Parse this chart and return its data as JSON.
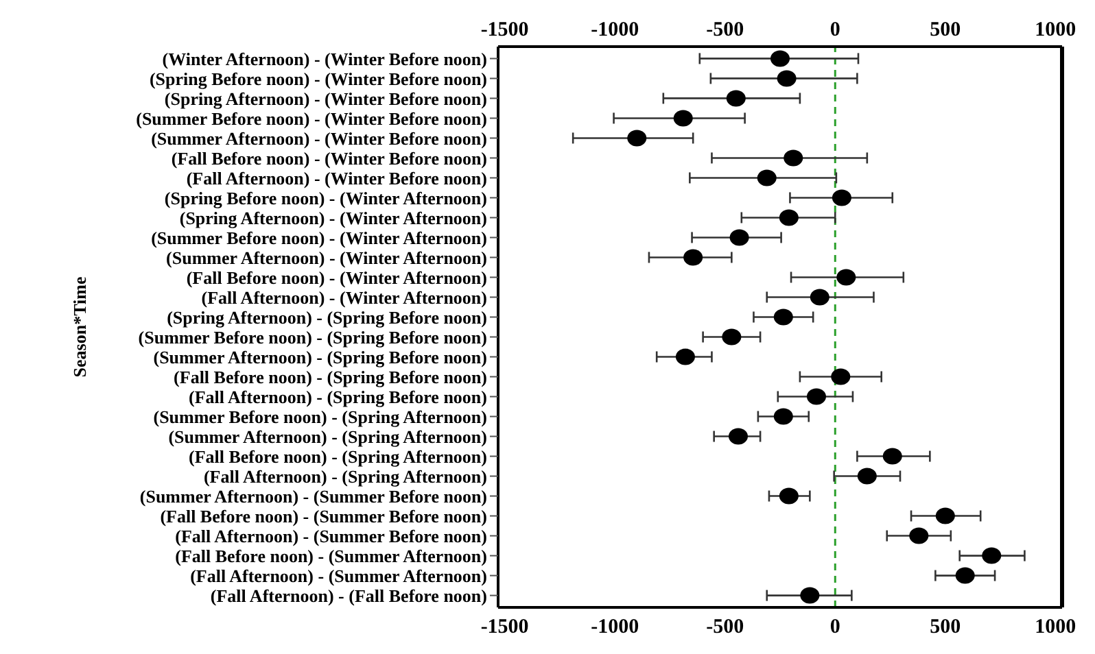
{
  "chart_data": {
    "type": "scatter",
    "orientation": "horizontal",
    "ylabel": "Season*Time",
    "categories": [
      "(Winter Afternoon) - (Winter Before noon)",
      "(Spring Before noon) - (Winter Before noon)",
      "(Spring Afternoon) - (Winter Before noon)",
      "(Summer Before noon) - (Winter Before noon)",
      "(Summer Afternoon) - (Winter Before noon)",
      "(Fall Before noon) - (Winter Before noon)",
      "(Fall Afternoon) - (Winter Before noon)",
      "(Spring Before noon) - (Winter Afternoon)",
      "(Spring Afternoon) - (Winter Afternoon)",
      "(Summer Before noon) - (Winter Afternoon)",
      "(Summer Afternoon) - (Winter Afternoon)",
      "(Fall Before noon) - (Winter Afternoon)",
      "(Fall Afternoon) - (Winter Afternoon)",
      "(Spring Afternoon) - (Spring Before noon)",
      "(Summer Before noon) - (Spring Before noon)",
      "(Summer Afternoon) - (Spring Before noon)",
      "(Fall Before noon) - (Spring Before noon)",
      "(Fall Afternoon) - (Spring Before noon)",
      "(Summer Before noon) - (Spring Afternoon)",
      "(Summer Afternoon) - (Spring Afternoon)",
      "(Fall Before noon) - (Spring Afternoon)",
      "(Fall Afternoon) - (Spring Afternoon)",
      "(Summer Afternoon) - (Summer Before noon)",
      "(Fall Before noon) - (Summer Before noon)",
      "(Fall Afternoon) - (Summer Before noon)",
      "(Fall Before noon) - (Summer Afternoon)",
      "(Fall Afternoon) - (Summer Afternoon)",
      "(Fall Afternoon) - (Fall Before noon)"
    ],
    "values": [
      -250,
      -220,
      -450,
      -690,
      -900,
      -190,
      -310,
      30,
      -210,
      -435,
      -645,
      50,
      -70,
      -235,
      -470,
      -680,
      25,
      -85,
      -235,
      -440,
      260,
      145,
      -210,
      500,
      380,
      710,
      590,
      -115
    ],
    "errors": [
      [
        -615,
        105
      ],
      [
        -565,
        100
      ],
      [
        -780,
        -160
      ],
      [
        -1005,
        -410
      ],
      [
        -1190,
        -645
      ],
      [
        -560,
        145
      ],
      [
        -660,
        5
      ],
      [
        -205,
        260
      ],
      [
        -425,
        0
      ],
      [
        -650,
        -245
      ],
      [
        -845,
        -470
      ],
      [
        -200,
        310
      ],
      [
        -310,
        175
      ],
      [
        -370,
        -100
      ],
      [
        -600,
        -340
      ],
      [
        -810,
        -560
      ],
      [
        -160,
        210
      ],
      [
        -260,
        80
      ],
      [
        -350,
        -120
      ],
      [
        -550,
        -340
      ],
      [
        100,
        430
      ],
      [
        -5,
        295
      ],
      [
        -300,
        -115
      ],
      [
        345,
        660
      ],
      [
        235,
        525
      ],
      [
        565,
        860
      ],
      [
        455,
        725
      ],
      [
        -310,
        75
      ]
    ],
    "color": "#000000",
    "marker": "circle",
    "xlim": [
      -1530,
      1030
    ],
    "xticks": [
      -1500,
      -1000,
      -500,
      0,
      500,
      1000
    ],
    "x2lim": [
      -1530,
      1030
    ],
    "x2ticks": [
      -1500,
      -1000,
      -500,
      0,
      500,
      1000
    ],
    "ref_lines": [
      {
        "axis": "x",
        "value": 0,
        "color": "#2ca02c",
        "line_style": "dashed"
      }
    ]
  }
}
